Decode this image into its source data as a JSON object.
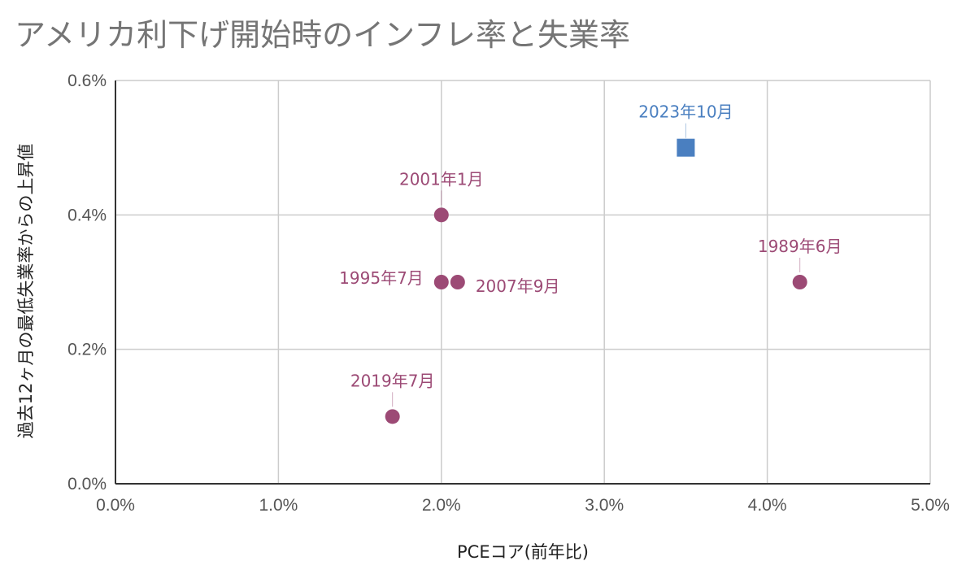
{
  "chart_data": {
    "type": "scatter",
    "title": "アメリカ利下げ開始時のインフレ率と失業率",
    "xlabel": "PCEコア(前年比)",
    "ylabel": "過去12ヶ月の最低失業率からの上昇値",
    "xlim": [
      0,
      5
    ],
    "ylim": [
      0,
      0.6
    ],
    "xticks": [
      "0.0%",
      "1.0%",
      "2.0%",
      "3.0%",
      "4.0%",
      "5.0%"
    ],
    "yticks": [
      "0.0%",
      "0.2%",
      "0.4%",
      "0.6%"
    ],
    "grid": true,
    "colors": {
      "historical": "#9c4a75",
      "current": "#4a7fc0"
    },
    "points": [
      {
        "label": "2001年1月",
        "x": 2.0,
        "y": 0.4,
        "series": "historical",
        "marker": "circle"
      },
      {
        "label": "1995年7月",
        "x": 2.0,
        "y": 0.3,
        "series": "historical",
        "marker": "circle"
      },
      {
        "label": "2007年9月",
        "x": 2.1,
        "y": 0.3,
        "series": "historical",
        "marker": "circle"
      },
      {
        "label": "2019年7月",
        "x": 1.7,
        "y": 0.1,
        "series": "historical",
        "marker": "circle"
      },
      {
        "label": "1989年6月",
        "x": 4.2,
        "y": 0.3,
        "series": "historical",
        "marker": "circle"
      },
      {
        "label": "2023年10月",
        "x": 3.5,
        "y": 0.5,
        "series": "current",
        "marker": "square"
      }
    ]
  }
}
